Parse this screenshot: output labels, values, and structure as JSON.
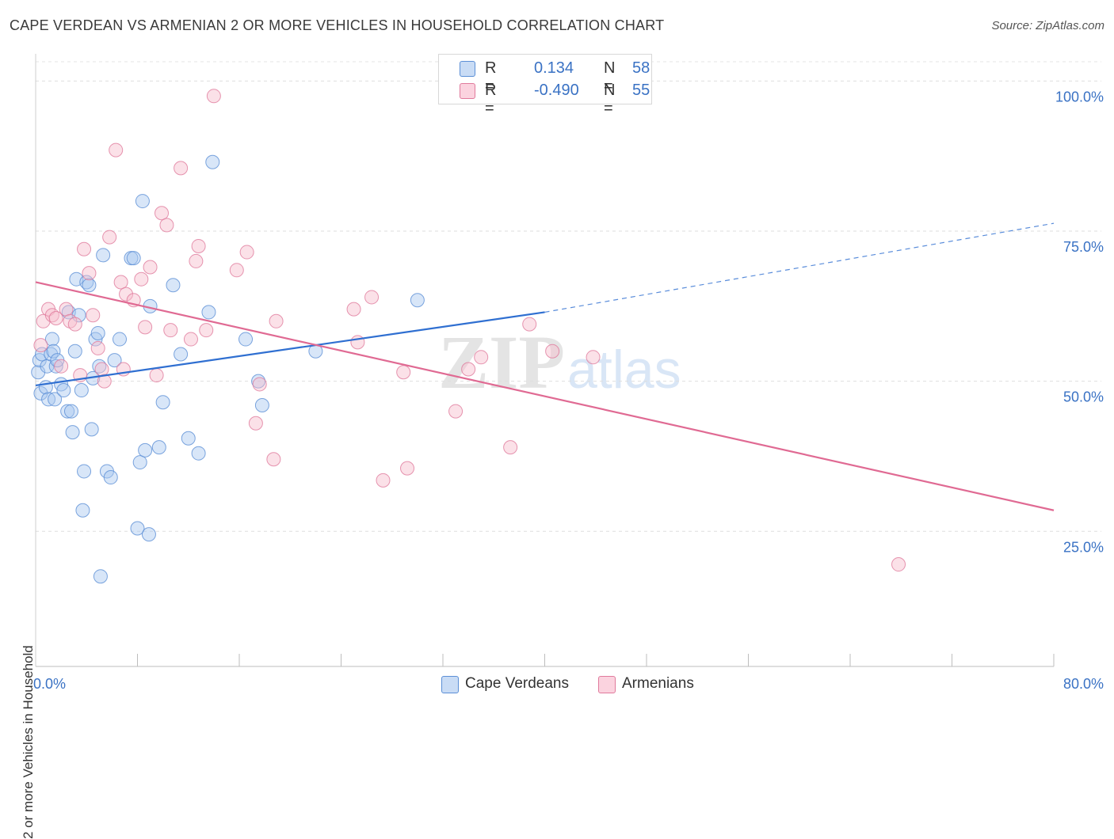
{
  "title": "CAPE VERDEAN VS ARMENIAN 2 OR MORE VEHICLES IN HOUSEHOLD CORRELATION CHART",
  "source": "Source: ZipAtlas.com",
  "watermark": {
    "zip": "ZIP",
    "atlas": "atlas"
  },
  "legend": {
    "rows": [
      {
        "r_label": "R =",
        "r_value": "0.134",
        "n_label": "N =",
        "n_value": "58",
        "color": "#a9c8ef",
        "border": "#5b8fd6"
      },
      {
        "r_label": "R =",
        "r_value": "-0.490",
        "n_label": "N =",
        "n_value": "55",
        "color": "#f6bccd",
        "border": "#e07a9c"
      }
    ]
  },
  "bottom_legend": [
    {
      "label": "Cape Verdeans",
      "color": "#a9c8ef",
      "border": "#5b8fd6"
    },
    {
      "label": "Armenians",
      "color": "#f6bccd",
      "border": "#e07a9c"
    }
  ],
  "chart_data": {
    "type": "scatter",
    "title": "CAPE VERDEAN VS ARMENIAN 2 OR MORE VEHICLES IN HOUSEHOLD CORRELATION CHART",
    "xlabel": "",
    "ylabel": "2 or more Vehicles in Household",
    "xlim": [
      0,
      80
    ],
    "ylim": [
      2.5,
      104
    ],
    "x_tick_labels": [
      {
        "value": 0,
        "label": "0.0%"
      },
      {
        "value": 80,
        "label": "80.0%"
      }
    ],
    "y_tick_labels": [
      {
        "value": 25,
        "label": "25.0%"
      },
      {
        "value": 50,
        "label": "50.0%"
      },
      {
        "value": 75,
        "label": "75.0%"
      },
      {
        "value": 100,
        "label": "100.0%"
      }
    ],
    "grid": true,
    "legend_position": "top-center",
    "series": [
      {
        "name": "Cape Verdeans",
        "color": "#a9c8ef",
        "edge": "#5b8fd6",
        "trend": {
          "x": [
            0,
            40
          ],
          "y": [
            49.3,
            61.5
          ],
          "dashed_to": [
            80,
            76.3
          ],
          "color": "#2f6fd1"
        },
        "points": [
          [
            0.2,
            51.5
          ],
          [
            0.3,
            53.5
          ],
          [
            0.4,
            48.0
          ],
          [
            0.5,
            54.5
          ],
          [
            0.8,
            49.0
          ],
          [
            0.9,
            52.5
          ],
          [
            1.0,
            47.0
          ],
          [
            1.2,
            54.5
          ],
          [
            1.3,
            57.0
          ],
          [
            1.4,
            55.0
          ],
          [
            1.5,
            47.0
          ],
          [
            1.6,
            52.5
          ],
          [
            1.7,
            53.5
          ],
          [
            2.0,
            49.5
          ],
          [
            2.2,
            48.5
          ],
          [
            2.5,
            45.0
          ],
          [
            2.6,
            61.5
          ],
          [
            2.8,
            45.0
          ],
          [
            2.9,
            41.5
          ],
          [
            3.1,
            55.0
          ],
          [
            3.2,
            67.0
          ],
          [
            3.4,
            61.0
          ],
          [
            3.6,
            48.5
          ],
          [
            3.7,
            28.5
          ],
          [
            3.8,
            35.0
          ],
          [
            4.0,
            66.5
          ],
          [
            4.2,
            66.0
          ],
          [
            4.4,
            42.0
          ],
          [
            4.5,
            50.5
          ],
          [
            4.7,
            57.0
          ],
          [
            4.9,
            58.0
          ],
          [
            5.0,
            52.5
          ],
          [
            5.1,
            17.5
          ],
          [
            5.3,
            71.0
          ],
          [
            5.6,
            35.0
          ],
          [
            5.9,
            34.0
          ],
          [
            6.2,
            53.5
          ],
          [
            6.6,
            57.0
          ],
          [
            7.5,
            70.5
          ],
          [
            7.7,
            70.5
          ],
          [
            8.0,
            25.5
          ],
          [
            8.2,
            36.5
          ],
          [
            8.4,
            80.0
          ],
          [
            8.6,
            38.5
          ],
          [
            8.9,
            24.5
          ],
          [
            9.0,
            62.5
          ],
          [
            9.7,
            39.0
          ],
          [
            10.0,
            46.5
          ],
          [
            10.8,
            66.0
          ],
          [
            11.4,
            54.5
          ],
          [
            12.0,
            40.5
          ],
          [
            12.8,
            38.0
          ],
          [
            13.6,
            61.5
          ],
          [
            13.9,
            86.5
          ],
          [
            16.5,
            57.0
          ],
          [
            17.5,
            50.0
          ],
          [
            17.8,
            46.0
          ],
          [
            22.0,
            55.0
          ],
          [
            30.0,
            63.5
          ]
        ]
      },
      {
        "name": "Armenians",
        "color": "#f6bccd",
        "edge": "#e07a9c",
        "trend": {
          "x": [
            0,
            80
          ],
          "y": [
            66.5,
            28.5
          ],
          "color": "#e06a93"
        },
        "points": [
          [
            0.4,
            56.0
          ],
          [
            0.6,
            60.0
          ],
          [
            1.0,
            62.0
          ],
          [
            1.3,
            61.0
          ],
          [
            1.6,
            60.5
          ],
          [
            2.0,
            52.5
          ],
          [
            2.4,
            62.0
          ],
          [
            2.7,
            60.0
          ],
          [
            3.1,
            59.5
          ],
          [
            3.5,
            51.0
          ],
          [
            3.8,
            72.0
          ],
          [
            4.2,
            68.0
          ],
          [
            4.5,
            61.0
          ],
          [
            4.9,
            55.5
          ],
          [
            5.2,
            52.0
          ],
          [
            5.4,
            50.0
          ],
          [
            5.8,
            74.0
          ],
          [
            6.3,
            88.5
          ],
          [
            6.7,
            66.5
          ],
          [
            6.9,
            52.0
          ],
          [
            7.1,
            64.5
          ],
          [
            7.7,
            63.5
          ],
          [
            8.3,
            67.0
          ],
          [
            8.6,
            59.0
          ],
          [
            9.0,
            69.0
          ],
          [
            9.5,
            51.0
          ],
          [
            9.9,
            78.0
          ],
          [
            10.3,
            76.0
          ],
          [
            10.6,
            58.5
          ],
          [
            11.4,
            85.5
          ],
          [
            12.2,
            57.0
          ],
          [
            12.6,
            70.0
          ],
          [
            12.8,
            72.5
          ],
          [
            13.4,
            58.5
          ],
          [
            15.8,
            68.5
          ],
          [
            16.6,
            71.5
          ],
          [
            17.3,
            43.0
          ],
          [
            17.6,
            49.5
          ],
          [
            18.7,
            37.0
          ],
          [
            18.9,
            60.0
          ],
          [
            14.0,
            97.5
          ],
          [
            25.0,
            62.0
          ],
          [
            25.3,
            56.5
          ],
          [
            26.4,
            64.0
          ],
          [
            27.3,
            33.5
          ],
          [
            28.9,
            51.5
          ],
          [
            29.2,
            35.5
          ],
          [
            33.0,
            45.0
          ],
          [
            34.0,
            52.0
          ],
          [
            35.0,
            54.0
          ],
          [
            37.3,
            39.0
          ],
          [
            38.8,
            59.5
          ],
          [
            40.6,
            55.0
          ],
          [
            43.8,
            54.0
          ],
          [
            67.8,
            19.5
          ]
        ]
      }
    ]
  }
}
